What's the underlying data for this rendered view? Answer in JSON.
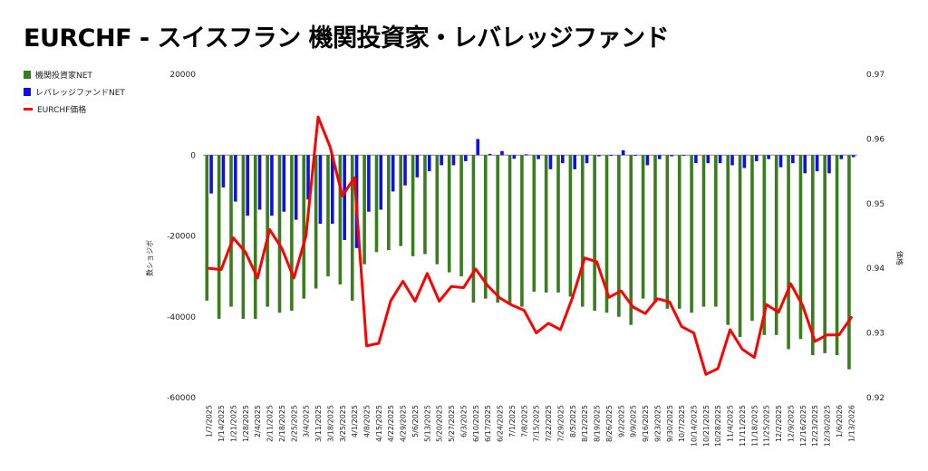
{
  "chart_data": {
    "type": "bar",
    "title": "EURCHF - スイスフラン 機関投資家・レバレッジファンド",
    "ylabel_left": "数ショジボ",
    "ylabel_right": "価格",
    "ylim_left": [
      -60000,
      20000
    ],
    "ylim_right": [
      0.92,
      0.97
    ],
    "left_ticks": [
      20000,
      0,
      -20000,
      -40000,
      -60000
    ],
    "right_ticks": [
      0.97,
      0.96,
      0.95,
      0.94,
      0.93,
      0.92
    ],
    "colors": {
      "institutional": "#3a7d1e",
      "leveraged": "#1010e0",
      "price": "#ff0000"
    },
    "categories": [
      "1/7/2025",
      "1/14/2025",
      "1/21/2025",
      "1/28/2025",
      "2/4/2025",
      "2/11/2025",
      "2/18/2025",
      "2/25/2025",
      "3/4/2025",
      "3/11/2025",
      "3/18/2025",
      "3/25/2025",
      "4/1/2025",
      "4/8/2025",
      "4/15/2025",
      "4/22/2025",
      "4/29/2025",
      "5/6/2025",
      "5/13/2025",
      "5/20/2025",
      "5/27/2025",
      "6/3/2025",
      "6/10/2025",
      "6/17/2025",
      "6/24/2025",
      "7/1/2025",
      "7/8/2025",
      "7/15/2025",
      "7/22/2025",
      "7/29/2025",
      "8/5/2025",
      "8/12/2025",
      "8/19/2025",
      "8/26/2025",
      "9/2/2025",
      "9/9/2025",
      "9/16/2025",
      "9/23/2025",
      "9/30/2025",
      "10/7/2025",
      "10/14/2025",
      "10/21/2025",
      "10/28/2025",
      "11/4/2025",
      "11/11/2025",
      "11/18/2025",
      "11/25/2025",
      "12/2/2025",
      "12/9/2025",
      "12/16/2025",
      "12/23/2025",
      "12/30/2025",
      "1/6/2026",
      "1/13/2026"
    ],
    "series": [
      {
        "name": "機関投資家NET",
        "type": "bar",
        "values": [
          -36000,
          -40500,
          -37500,
          -40500,
          -40500,
          -37500,
          -39000,
          -38500,
          -35500,
          -33000,
          -30000,
          -32000,
          -36000,
          -27000,
          -24000,
          -23500,
          -22500,
          -25000,
          -24500,
          -27000,
          -29000,
          -30000,
          -36500,
          -35500,
          -36500,
          -37000,
          -37500,
          -33800,
          -34000,
          -34000,
          -35000,
          -37500,
          -38500,
          -39000,
          -40000,
          -42000,
          -35500,
          -36500,
          -38000,
          -38000,
          -39000,
          -37500,
          -37500,
          -42000,
          -45000,
          -41000,
          -44500,
          -44500,
          -48000,
          -45500,
          -49500,
          -49000,
          -49500,
          -53000
        ]
      },
      {
        "name": "レバレッジファンドNET",
        "type": "bar",
        "values": [
          -9500,
          -8000,
          -11500,
          -15000,
          -13500,
          -15000,
          -14000,
          -16000,
          -11000,
          -17000,
          -17000,
          -21000,
          -23000,
          -14000,
          -13500,
          -9000,
          -7500,
          -5500,
          -4000,
          -2500,
          -2500,
          -1500,
          4000,
          300,
          1000,
          -900,
          200,
          -1000,
          -3500,
          -2000,
          -3500,
          -2000,
          -300,
          -200,
          1200,
          -200,
          -2500,
          -1000,
          -300,
          -200,
          -2000,
          -2000,
          -2000,
          -2500,
          -3200,
          -1500,
          -1000,
          -3000,
          -2000,
          -4500,
          -4000,
          -4500,
          -1000,
          -500
        ]
      },
      {
        "name": "EURCHF価格",
        "type": "line",
        "values": [
          0.94,
          0.9398,
          0.9447,
          0.9425,
          0.9385,
          0.946,
          0.9431,
          0.9385,
          0.945,
          0.9634,
          0.9587,
          0.9512,
          0.954,
          0.928,
          0.9284,
          0.935,
          0.938,
          0.9349,
          0.9392,
          0.9349,
          0.9372,
          0.937,
          0.9399,
          0.9373,
          0.9354,
          0.9343,
          0.9335,
          0.93,
          0.9315,
          0.9305,
          0.9355,
          0.9416,
          0.941,
          0.9355,
          0.9365,
          0.934,
          0.933,
          0.9353,
          0.9348,
          0.931,
          0.93,
          0.9236,
          0.9245,
          0.9305,
          0.9275,
          0.9262,
          0.9344,
          0.9332,
          0.9376,
          0.9342,
          0.9287,
          0.9297,
          0.9297,
          0.9324
        ]
      }
    ]
  }
}
